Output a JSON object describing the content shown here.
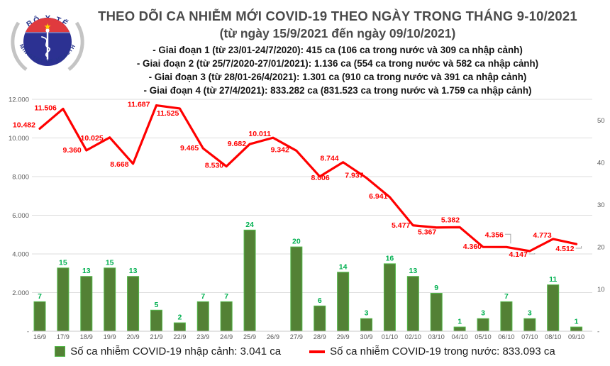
{
  "header": {
    "title": "THEO DÕI CA NHIỄM MỚI COVID-19 THEO NGÀY TRONG THÁNG 9-10/2021",
    "subtitle": "(từ ngày 15/9/2021 đến ngày 09/10/2021)",
    "phases": [
      "- Giai đoạn 1 (từ 23/01-24/7/2020): 415 ca (106 ca trong nước và 309 ca nhập cảnh)",
      "- Giai đoạn 2 (từ 25/7/2020-27/01/2021): 1.136 ca (554 ca trong nước và 582 ca nhập cảnh)",
      "- Giai đoạn 3 (từ 28/01-26/4/2021): 1.301 ca (910 ca trong nước và 391 ca nhập cảnh)",
      "- Giai đoạn 4 (từ 27/4/2021): 833.282 ca (831.523 ca trong nước và 1.759 ca nhập cảnh)"
    ]
  },
  "logo": {
    "top_text": "BỘ Y TẾ",
    "bottom_text": "MINISTRY OF HEALTH",
    "colors": {
      "navy": "#2c3192",
      "red": "#e03a3e",
      "star": "#ffd500",
      "arc_text": "#27348b",
      "ornament": "#c4c4c4"
    }
  },
  "chart_data": {
    "type": "combo",
    "categories": [
      "16/9",
      "17/9",
      "18/9",
      "19/9",
      "20/9",
      "21/9",
      "22/9",
      "23/9",
      "24/9",
      "25/9",
      "26/9",
      "27/9",
      "28/9",
      "29/9",
      "30/9",
      "01/10",
      "02/10",
      "03/10",
      "04/10",
      "05/10",
      "06/10",
      "07/10",
      "08/10",
      "09/10"
    ],
    "series": [
      {
        "name": "Số ca nhiễm COVID-19 nhập cảnh",
        "type": "bar",
        "axis": "right",
        "color": "#538135",
        "border_color": "#52b848",
        "label_color": "#00b050",
        "values": [
          7,
          15,
          13,
          15,
          13,
          5,
          2,
          7,
          7,
          24,
          0,
          20,
          6,
          14,
          3,
          16,
          13,
          9,
          1,
          3,
          7,
          3,
          11,
          1
        ]
      },
      {
        "name": "Số ca nhiễm COVID-19 trong nước",
        "type": "line",
        "axis": "left",
        "color": "#ff0000",
        "label_color": "#ff0000",
        "values": [
          10482,
          11506,
          9360,
          10025,
          8668,
          11687,
          11525,
          9465,
          8530,
          9682,
          10011,
          9342,
          8006,
          8744,
          7937,
          6941,
          5477,
          5367,
          5382,
          4360,
          4356,
          4147,
          4773,
          4512
        ],
        "labels": [
          "10.482",
          "11.506",
          "9.360",
          "10.025",
          "8.668",
          "11.687",
          "11.525",
          "9.465",
          "8.530",
          "9.682",
          "10.011",
          "9.342",
          "8.006",
          "8.744",
          "7.937",
          "6.941",
          "5.477",
          "5.367",
          "5.382",
          "4.360",
          "4.356",
          "4.147",
          "4.773",
          "4.512"
        ],
        "label_offsets": [
          [
            -6,
            -2,
            ""
          ],
          [
            -9,
            2,
            ""
          ],
          [
            -7,
            3,
            ""
          ],
          [
            -9,
            4,
            ""
          ],
          [
            -6,
            4,
            ""
          ],
          [
            -9,
            2,
            ""
          ],
          [
            -1,
            10,
            ""
          ],
          [
            -6,
            3,
            ""
          ],
          [
            -4,
            2,
            ""
          ],
          [
            -5,
            3,
            ""
          ],
          [
            -3,
            -2,
            ""
          ],
          [
            -10,
            2,
            ""
          ],
          [
            14,
            5,
            ""
          ],
          [
            -6,
            -2,
            ""
          ],
          [
            -4,
            0,
            ""
          ],
          [
            -3,
            2,
            ""
          ],
          [
            -4,
            3,
            ""
          ],
          [
            0,
            10,
            ""
          ],
          [
            0,
            -7,
            ""
          ],
          [
            -2,
            3,
            ""
          ],
          [
            -4,
            -14,
            "down"
          ],
          [
            -3,
            8,
            "up"
          ],
          [
            -2,
            -2,
            ""
          ],
          [
            -3,
            10,
            "up"
          ]
        ]
      }
    ],
    "left_axis": {
      "ticks": [
        "-",
        "2.000",
        "4.000",
        "6.000",
        "8.000",
        "10.000",
        "12.000"
      ],
      "min": 0,
      "max": 12000,
      "step": 2000
    },
    "right_axis": {
      "ticks": [
        "-",
        "10",
        "20",
        "30",
        "40",
        "50"
      ],
      "min": 0,
      "max": 55,
      "step": 10
    },
    "grid": true,
    "gridline_color": "#dedede",
    "axis_label_color": "#595959",
    "leader_color": "#a6a6a6",
    "legend_position": "bottom"
  },
  "legend": {
    "items": [
      {
        "label": "Số ca nhiễm COVID-19 nhập cảnh: 3.041 ca",
        "color": "#538135",
        "shape": "square"
      },
      {
        "label": "Số ca nhiễm COVID-19 trong nước: 833.093 ca",
        "color": "#ff0000",
        "shape": "dash"
      }
    ]
  }
}
